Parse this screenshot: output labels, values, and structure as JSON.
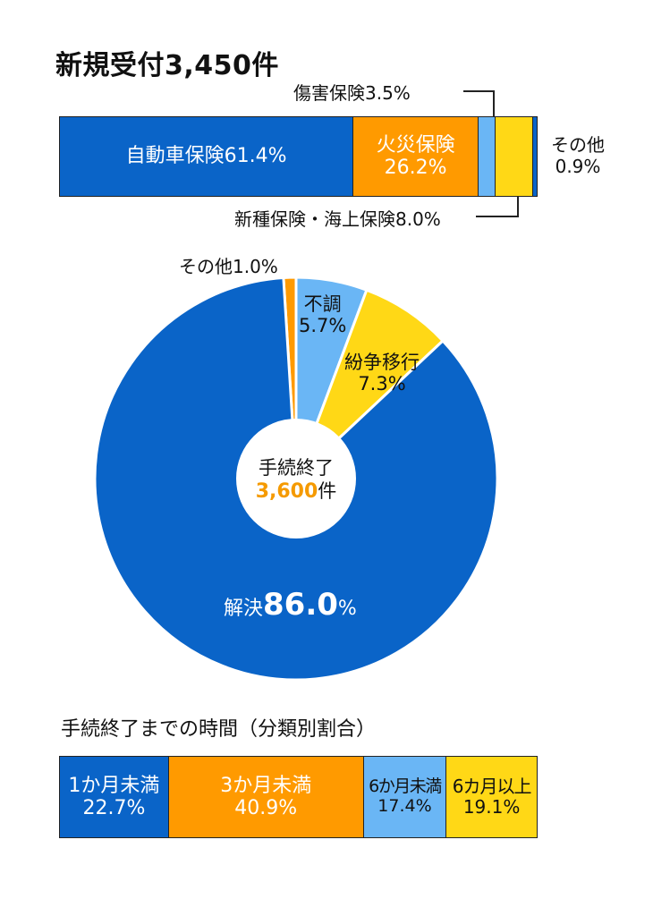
{
  "colors": {
    "blue": "#0a64c8",
    "orange": "#ff9a00",
    "light_blue": "#6ab6f5",
    "yellow": "#ffd816",
    "accent_orange": "#f59a00"
  },
  "chart_data": [
    {
      "type": "bar",
      "title": "新規受付3,450件",
      "orientation": "stacked-horizontal",
      "unit": "%",
      "categories": [
        "自動車保険",
        "火災保険",
        "傷害保険",
        "新種保険・海上保険",
        "その他"
      ],
      "values": [
        61.4,
        26.2,
        3.5,
        8.0,
        0.9
      ],
      "labels": [
        "自動車保険61.4%",
        "火災保険",
        "26.2%",
        "傷害保険3.5%",
        "新種保険・海上保険8.0%",
        "その他",
        "0.9%"
      ]
    },
    {
      "type": "pie",
      "style": "donut",
      "center_label": "手続終了",
      "center_value": "3,600",
      "center_unit": "件",
      "categories": [
        "解決",
        "その他",
        "不調",
        "紛争移行"
      ],
      "values": [
        86.0,
        1.0,
        5.7,
        7.3
      ],
      "labels": {
        "resolved_name": "解決",
        "resolved_value": "86.0",
        "resolved_unit": "%",
        "other": "その他1.0%",
        "failed_name": "不調",
        "failed_value": "5.7%",
        "dispute_name": "紛争移行",
        "dispute_value": "7.3%"
      }
    },
    {
      "type": "bar",
      "title": "手続終了までの時間（分類別割合）",
      "orientation": "stacked-horizontal",
      "unit": "%",
      "categories": [
        "1か月未満",
        "3か月未満",
        "6か月未満",
        "6カ月以上"
      ],
      "values": [
        22.7,
        40.9,
        17.4,
        19.1
      ],
      "labels": [
        "1か月未満",
        "22.7%",
        "3か月未満",
        "40.9%",
        "6か月未満",
        "17.4%",
        "6カ月以上",
        "19.1%"
      ]
    }
  ]
}
